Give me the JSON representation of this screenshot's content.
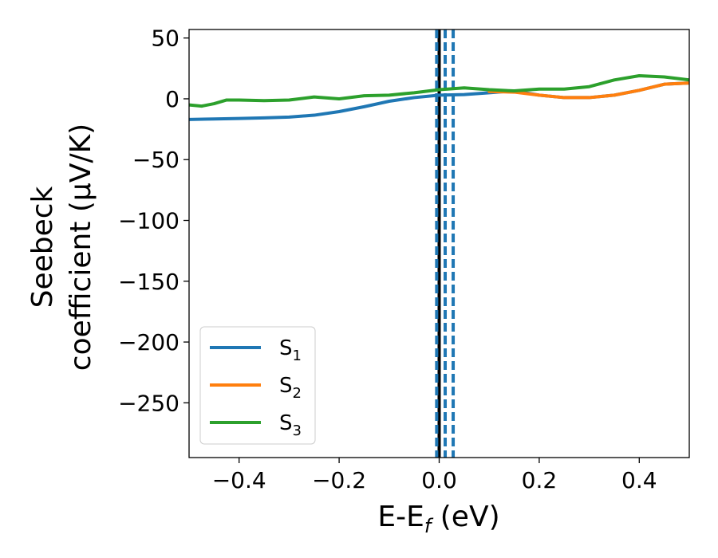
{
  "chart_data": {
    "type": "line",
    "xlabel": {
      "base": "E-E",
      "sub": "f",
      "unit": " (eV)"
    },
    "ylabel": {
      "line1": "Seebeck",
      "line2": "coefficient  (μV/K)"
    },
    "xlim": [
      -0.5,
      0.5
    ],
    "ylim": [
      -295,
      57
    ],
    "xticks": [
      {
        "value": -0.4,
        "label": "−0.4"
      },
      {
        "value": -0.2,
        "label": "−0.2"
      },
      {
        "value": 0.0,
        "label": "0.0"
      },
      {
        "value": 0.2,
        "label": "0.2"
      },
      {
        "value": 0.4,
        "label": "0.4"
      }
    ],
    "yticks": [
      {
        "value": 50,
        "label": "50"
      },
      {
        "value": 0,
        "label": "0"
      },
      {
        "value": -50,
        "label": "−50"
      },
      {
        "value": -100,
        "label": "−100"
      },
      {
        "value": -150,
        "label": "−150"
      },
      {
        "value": -200,
        "label": "−200"
      },
      {
        "value": -250,
        "label": "−250"
      }
    ],
    "series": [
      {
        "name": "S1",
        "label_base": "S",
        "label_sub": "1",
        "color": "#1f77b4",
        "x": [
          -0.5,
          -0.45,
          -0.4,
          -0.35,
          -0.3,
          -0.25,
          -0.2,
          -0.15,
          -0.1,
          -0.05,
          0.0,
          0.05,
          0.1,
          0.15,
          0.2,
          0.25,
          0.3,
          0.35,
          0.4,
          0.45,
          0.5
        ],
        "y": [
          -17,
          -16.6,
          -16.2,
          -15.7,
          -15,
          -13.5,
          -10.5,
          -6.5,
          -2,
          1,
          3,
          3.5,
          5,
          6.5,
          3,
          1,
          1,
          3,
          7,
          12,
          13
        ]
      },
      {
        "name": "S2",
        "label_base": "S",
        "label_sub": "2",
        "color": "#ff7f0e",
        "x": [
          0.1,
          0.15,
          0.2,
          0.25,
          0.3,
          0.35,
          0.4,
          0.45,
          0.5
        ],
        "y": [
          6,
          5.5,
          3,
          1,
          1,
          3,
          7,
          12,
          13
        ]
      },
      {
        "name": "S3",
        "label_base": "S",
        "label_sub": "3",
        "color": "#2ca02c",
        "x": [
          -0.5,
          -0.475,
          -0.45,
          -0.425,
          -0.4,
          -0.35,
          -0.3,
          -0.25,
          -0.2,
          -0.15,
          -0.1,
          -0.05,
          0.0,
          0.05,
          0.1,
          0.15,
          0.2,
          0.25,
          0.3,
          0.35,
          0.4,
          0.45,
          0.5
        ],
        "y": [
          -5,
          -6,
          -4,
          -1,
          -1,
          -1.5,
          -1,
          1.5,
          0,
          2.5,
          3,
          5,
          7.5,
          9,
          7.5,
          6.5,
          8,
          8,
          10,
          15.5,
          19,
          18,
          15.5
        ]
      }
    ],
    "vlines": [
      {
        "x": 0.0,
        "color": "#000000",
        "style": "solid"
      },
      {
        "x": -0.005,
        "color": "#1f77b4",
        "style": "dashed"
      },
      {
        "x": 0.012,
        "color": "#1f77b4",
        "style": "dashed"
      },
      {
        "x": 0.028,
        "color": "#1f77b4",
        "style": "dashed"
      }
    ],
    "legend": {
      "position": "lower-left"
    },
    "grid": false
  }
}
